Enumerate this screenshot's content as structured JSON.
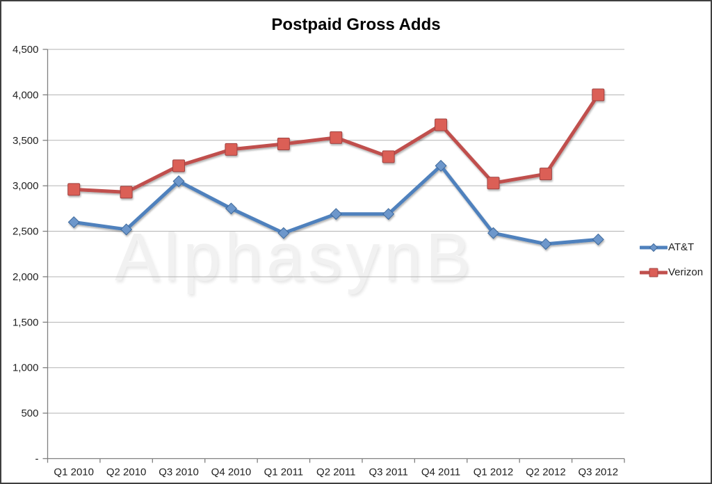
{
  "title": "Postpaid Gross Adds",
  "watermark": "AlphasynB",
  "colors": {
    "gridline": "#b3b3b3",
    "axis": "#7f7f7f",
    "tick_label": "#1f1f1f",
    "background": "#ffffff",
    "watermark": "#f1f1f1"
  },
  "chart_data": {
    "type": "line",
    "title": "Postpaid Gross Adds",
    "categories": [
      "Q1 2010",
      "Q2 2010",
      "Q3 2010",
      "Q4 2010",
      "Q1 2011",
      "Q2 2011",
      "Q3 2011",
      "Q4 2011",
      "Q1 2012",
      "Q2 2012",
      "Q3 2012"
    ],
    "series": [
      {
        "name": "AT&T",
        "values": [
          2600,
          2520,
          3050,
          2750,
          2480,
          2690,
          2690,
          3220,
          2480,
          2360,
          2410
        ],
        "color": "#4f81bd",
        "marker": "diamond",
        "marker_fill": "#6d97cb",
        "marker_stroke": "#3e699c"
      },
      {
        "name": "Verizon",
        "values": [
          2960,
          2930,
          3220,
          3400,
          3460,
          3530,
          3320,
          3670,
          3030,
          3130,
          4000
        ],
        "color": "#c0504d",
        "marker": "square",
        "marker_fill": "#db5e57",
        "marker_stroke": "#a04341"
      }
    ],
    "xlabel": "",
    "ylabel": "",
    "ylim": [
      0,
      4500
    ],
    "ytick_step": 500,
    "ytick_labels": [
      "-",
      "500",
      "1,000",
      "1,500",
      "2,000",
      "2,500",
      "3,000",
      "3,500",
      "4,000",
      "4,500"
    ],
    "grid": true,
    "legend_position": "right"
  }
}
